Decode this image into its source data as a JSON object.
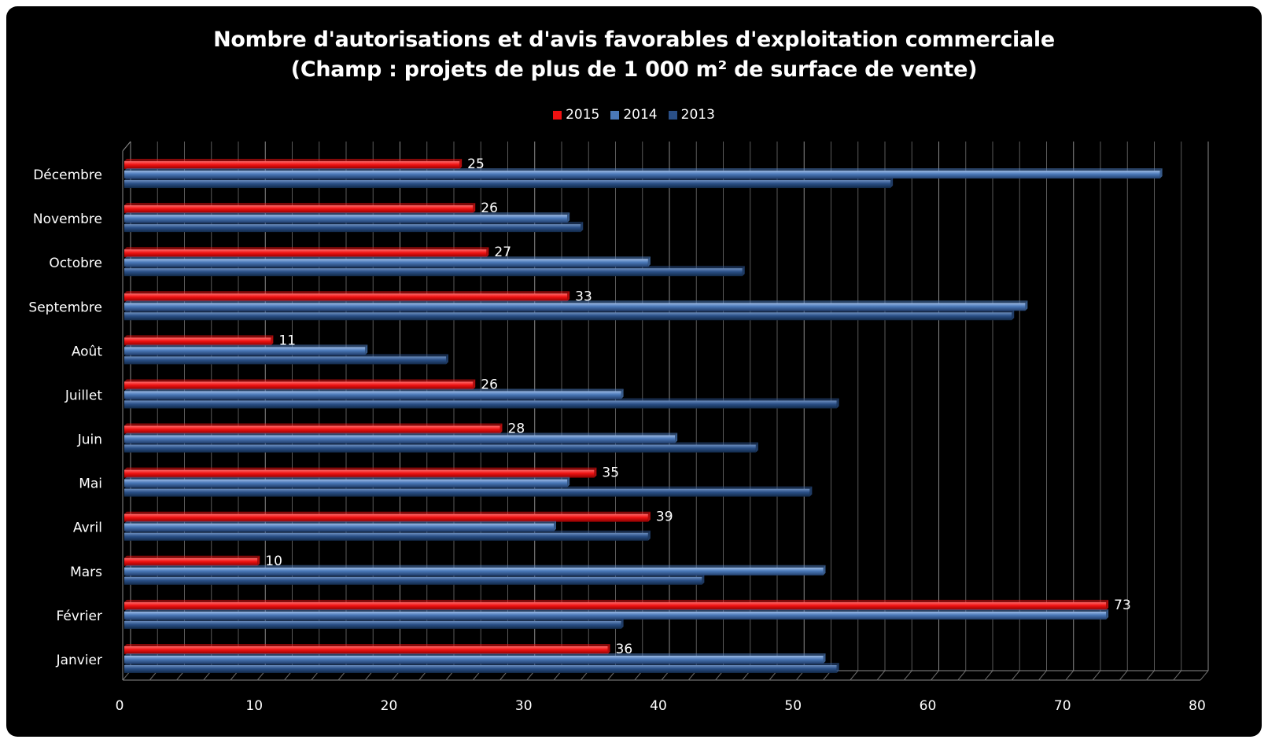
{
  "chart_data": {
    "type": "bar",
    "orientation": "horizontal",
    "title": "Nombre d'autorisations et d'avis favorables d'exploitation commerciale",
    "subtitle": "(Champ : projets de plus de 1 000 m² de surface de vente)",
    "categories": [
      "Janvier",
      "Février",
      "Mars",
      "Avril",
      "Mai",
      "Juin",
      "Juillet",
      "Août",
      "Septembre",
      "Octobre",
      "Novembre",
      "Décembre"
    ],
    "series": [
      {
        "name": "2015",
        "color": "#ee1111",
        "values": [
          36,
          73,
          10,
          39,
          35,
          28,
          26,
          11,
          33,
          27,
          26,
          25
        ],
        "data_labels": true
      },
      {
        "name": "2014",
        "color": "#4a78b8",
        "values": [
          52,
          73,
          52,
          32,
          33,
          41,
          37,
          18,
          67,
          39,
          33,
          77
        ],
        "data_labels": false
      },
      {
        "name": "2013",
        "color": "#2a4f86",
        "values": [
          53,
          37,
          43,
          39,
          51,
          47,
          53,
          24,
          66,
          46,
          34,
          57
        ],
        "data_labels": false
      }
    ],
    "xlim": [
      0,
      80
    ],
    "xticks": [
      "0",
      "10",
      "20",
      "30",
      "40",
      "50",
      "60",
      "70",
      "80"
    ],
    "grid": true,
    "legend_position": "top"
  }
}
